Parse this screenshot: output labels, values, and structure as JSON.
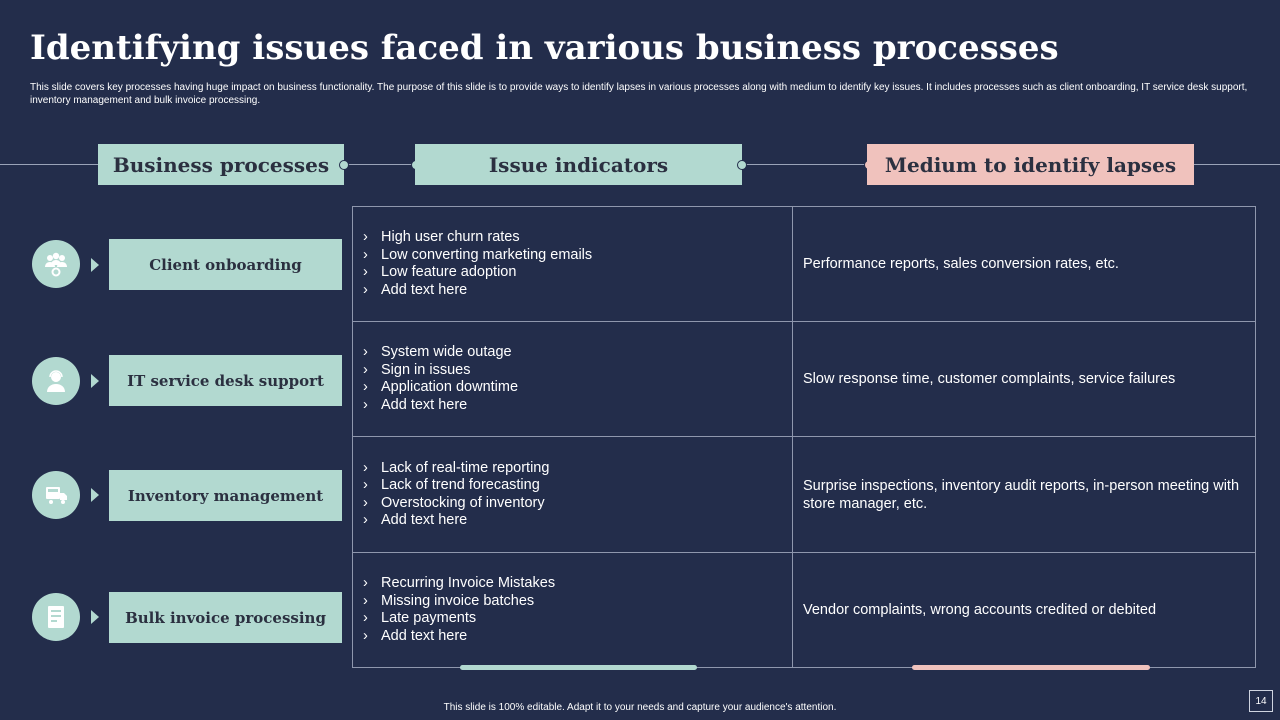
{
  "title": "Identifying issues faced in various business processes",
  "subtitle": "This slide covers key processes having huge impact on business functionality. The purpose of this slide is to provide ways to identify lapses in various processes along with medium to identify key issues. It includes processes such as client onboarding, IT service desk support, inventory management and bulk invoice processing.",
  "headers": {
    "processes": "Business processes",
    "issues": "Issue indicators",
    "medium": "Medium to identify lapses"
  },
  "colors": {
    "background": "#232d4b",
    "teal": "#b2d9d0",
    "pink": "#f0c2bd"
  },
  "rows": [
    {
      "process": "Client onboarding",
      "icon": "team-gear-icon",
      "issues": [
        "High user churn rates",
        "Low converting marketing emails",
        "Low feature adoption",
        "Add text here"
      ],
      "medium": "Performance reports, sales conversion rates, etc."
    },
    {
      "process": "IT service desk support",
      "icon": "support-agent-icon",
      "issues": [
        "System wide outage",
        "Sign in issues",
        "Application downtime",
        "Add text here"
      ],
      "medium": "Slow response time, customer complaints, service failures"
    },
    {
      "process": "Inventory management",
      "icon": "inventory-truck-icon",
      "issues": [
        "Lack of real-time reporting",
        "Lack of trend forecasting",
        "Overstocking of inventory",
        "Add text here"
      ],
      "medium": "Surprise inspections, inventory audit reports, in-person meeting with store manager, etc."
    },
    {
      "process": "Bulk invoice processing",
      "icon": "invoice-document-icon",
      "issues": [
        "Recurring Invoice Mistakes",
        "Missing invoice batches",
        "Late payments",
        "Add text here"
      ],
      "medium": "Vendor complaints, wrong accounts credited or debited"
    }
  ],
  "bullet_glyph": "›",
  "footer": "This slide is 100% editable. Adapt it to your needs and capture your audience's attention.",
  "page_number": "14"
}
